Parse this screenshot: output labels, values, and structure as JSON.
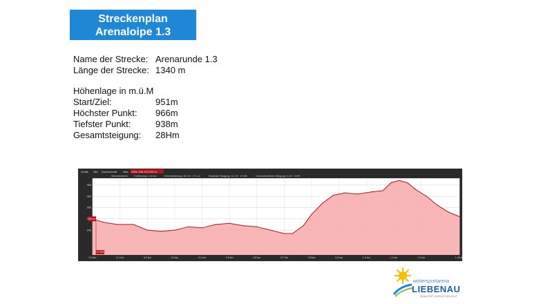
{
  "title": {
    "line1": "Streckenplan",
    "line2": "Arenaloipe 1.3"
  },
  "info": {
    "name_label": "Name der Strecke:",
    "name_value": "Arenarunde 1.3",
    "length_label": "Länge der Strecke:",
    "length_value": "1340 m",
    "section_heading": "Höhenlage in m.ü.M",
    "start_label": "Start/Ziel:",
    "start_value": "951m",
    "high_label": "Höchster Punkt:",
    "high_value": "966m",
    "low_label": "Tiefster Punkt:",
    "low_value": "938m",
    "climb_label": "Gesamtsteigung:",
    "climb_value": "28Hm"
  },
  "chart_toolbar": {
    "items": [
      "Grafik",
      "Min",
      "Durchschnitt",
      "Max",
      "Höhe 946 934 966 m"
    ],
    "stats": [
      "Seleckierwerte",
      "Entfernung: 1.34 km",
      "Höhenänderung: 26.3 m · 27.1 m",
      "Maximale Steigung: 14.1% · 27.8%",
      "Durchschnittliche Steigung: 4.1% · 3.6%"
    ]
  },
  "chart_data": {
    "type": "area",
    "xlabel": "",
    "ylabel": "",
    "xlim": [
      0,
      1.34
    ],
    "ylim": [
      934,
      968
    ],
    "y_ticks": [
      "965",
      "960",
      "955",
      "950",
      "945"
    ],
    "x_ticks": [
      "0.0 km",
      "0.1 km",
      "0.2 km",
      "0.3 km",
      "0.4 km",
      "0.5 km",
      "0.6 km",
      "0.7 km",
      "0.8 km",
      "0.9 km",
      "1.0 km",
      "1.1 km",
      "1.2 km",
      "1.34 km"
    ],
    "start_marker": "951 m",
    "end_marker": "17.9%",
    "series": [
      {
        "x": [
          0,
          0.04,
          0.09,
          0.15,
          0.2,
          0.25,
          0.3,
          0.35,
          0.4,
          0.45,
          0.5,
          0.55,
          0.6,
          0.65,
          0.7,
          0.73,
          0.77,
          0.8,
          0.84,
          0.88,
          0.92,
          0.97,
          1.02,
          1.06,
          1.09,
          1.12,
          1.15,
          1.18,
          1.22,
          1.26,
          1.3,
          1.34
        ],
        "y": [
          950,
          948.5,
          947.5,
          947.5,
          945,
          944.5,
          945,
          946.5,
          946,
          947.5,
          948,
          947,
          946.5,
          945,
          943.5,
          943.5,
          947,
          952,
          957,
          960.5,
          961.5,
          961,
          962,
          962.5,
          966,
          967,
          966,
          963,
          960,
          956,
          953,
          951
        ]
      }
    ],
    "colors": {
      "fill": "#f7a9a9",
      "line": "#b9141c",
      "plot_bg": "#ffffff",
      "frame": "#2a2a2a"
    }
  },
  "logo": {
    "small": "wintersportarena",
    "big": "LIEBENAU",
    "tag": "QUALITÄT DURCH VIELFALT"
  }
}
